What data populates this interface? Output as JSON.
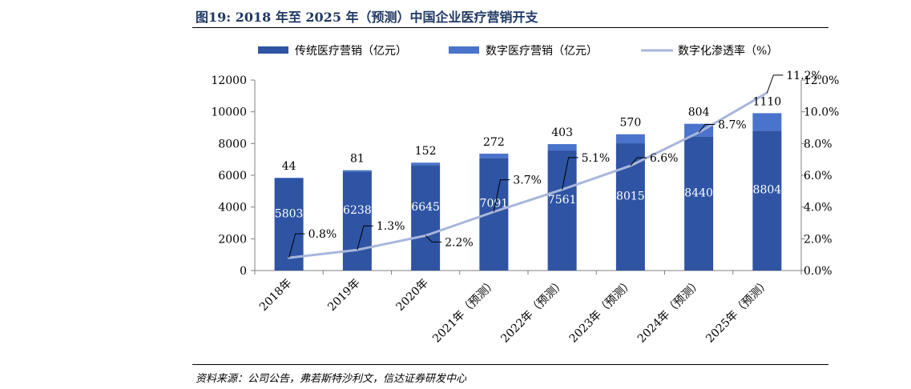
{
  "figure": {
    "title": "图19: 2018 年至 2025 年（预测）中国企业医疗营销开支",
    "source": "资料来源：公司公告，弗若斯特沙利文，信达证券研发中心"
  },
  "colors": {
    "title": "#1f3864",
    "traditional_bar": "#2f54a3",
    "digital_bar": "#4a74cc",
    "penetration_line": "#a8b6dc"
  },
  "chart_data": {
    "type": "bar",
    "stacked": true,
    "categories": [
      "2018年",
      "2019年",
      "2020年",
      "2021年（预测）",
      "2022年（预测）",
      "2023年（预测）",
      "2024年（预测）",
      "2025年（预测）"
    ],
    "series": [
      {
        "name": "传统医疗营销（亿元）",
        "type": "bar",
        "axis": "left",
        "values": [
          5803,
          6238,
          6645,
          7091,
          7561,
          8015,
          8440,
          8804
        ]
      },
      {
        "name": "数字医疗营销（亿元）",
        "type": "bar",
        "axis": "left",
        "values": [
          44,
          81,
          152,
          272,
          403,
          570,
          804,
          1110
        ]
      },
      {
        "name": "数字化渗透率（%）",
        "type": "line",
        "axis": "right",
        "values": [
          0.8,
          1.3,
          2.2,
          3.7,
          5.1,
          6.6,
          8.7,
          11.2
        ]
      }
    ],
    "data_labels": {
      "traditional": [
        "5803",
        "6238",
        "6645",
        "7091",
        "7561",
        "8015",
        "8440",
        "8804"
      ],
      "digital": [
        "44",
        "81",
        "152",
        "272",
        "403",
        "570",
        "804",
        "1110"
      ],
      "penetration": [
        "0.8%",
        "1.3%",
        "2.2%",
        "3.7%",
        "5.1%",
        "6.6%",
        "8.7%",
        "11.2%"
      ]
    },
    "y_left": {
      "min": 0,
      "max": 12000,
      "ticks": [
        "0",
        "2000",
        "4000",
        "6000",
        "8000",
        "10000",
        "12000"
      ]
    },
    "y_right": {
      "min": 0,
      "max": 12,
      "ticks": [
        "0.0%",
        "2.0%",
        "4.0%",
        "6.0%",
        "8.0%",
        "10.0%",
        "12.0%"
      ]
    },
    "grid": false,
    "legend_position": "top"
  }
}
